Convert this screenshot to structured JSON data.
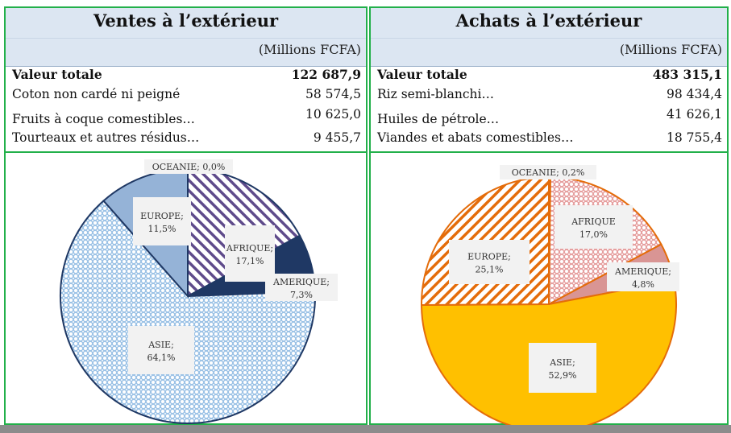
{
  "panels": [
    {
      "title": "Ventes à l’extérieur",
      "unit": "(Millions FCFA)",
      "rows": [
        {
          "label": "Valeur totale",
          "value": "122 687,9",
          "bold": true
        },
        {
          "label": "Coton non cardé ni peigné",
          "value": "58 574,5"
        },
        {
          "label": "Fruits à coque comestibles…",
          "value": "10 625,0"
        },
        {
          "label": "Tourteaux et autres résidus…",
          "value": "9 455,7"
        }
      ]
    },
    {
      "title": "Achats à l’extérieur",
      "unit": "(Millions FCFA)",
      "rows": [
        {
          "label": "Valeur totale",
          "value": "483 315,1",
          "bold": true
        },
        {
          "label": "Riz semi-blanchi…",
          "value": "98 434,4"
        },
        {
          "label": "Huiles de pétrole…",
          "value": "41 626,1"
        },
        {
          "label": "Viandes et abats comestibles…",
          "value": "18 755,4"
        }
      ]
    }
  ],
  "chart_data": [
    {
      "type": "pie",
      "slices": [
        {
          "name": "AFRIQUE",
          "value": 17.1,
          "label": "AFRIQUE;",
          "pct": "17,1%",
          "color": "#5f4b8b",
          "pattern": "diagonal-stripes"
        },
        {
          "name": "AMERIQUE",
          "value": 7.3,
          "label": "AMERIQUE;",
          "pct": "7,3%",
          "color": "#1f3864",
          "pattern": "solid"
        },
        {
          "name": "ASIE",
          "value": 64.1,
          "label": "ASIE;",
          "pct": "64,1%",
          "color": "#9dc3e6",
          "pattern": "dots"
        },
        {
          "name": "EUROPE",
          "value": 11.5,
          "label": "EUROPE;",
          "pct": "11,5%",
          "color": "#95b3d7",
          "pattern": "solid"
        },
        {
          "name": "OCEANIE",
          "value": 0.0,
          "label": "OCEANIE;",
          "pct": "0,0%",
          "color": "#1f3864",
          "pattern": "solid"
        }
      ]
    },
    {
      "type": "pie",
      "slices": [
        {
          "name": "OCEANIE",
          "value": 0.2,
          "label": "OCEANIE;",
          "pct": "0,2%",
          "color": "#e46c0a",
          "pattern": "solid"
        },
        {
          "name": "AFRIQUE",
          "value": 17.0,
          "label": "AFRIQUE",
          "pct": "17,0%",
          "color": "#e6a0a0",
          "pattern": "dots"
        },
        {
          "name": "AMERIQUE",
          "value": 4.8,
          "label": "AMERIQUE;",
          "pct": "4,8%",
          "color": "#d99594",
          "pattern": "solid"
        },
        {
          "name": "ASIE",
          "value": 52.9,
          "label": "ASIE;",
          "pct": "52,9%",
          "color": "#ffc000",
          "pattern": "solid"
        },
        {
          "name": "EUROPE",
          "value": 25.1,
          "label": "EUROPE;",
          "pct": "25,1%",
          "color": "#e46c0a",
          "pattern": "diagonal-stripes"
        }
      ]
    }
  ]
}
